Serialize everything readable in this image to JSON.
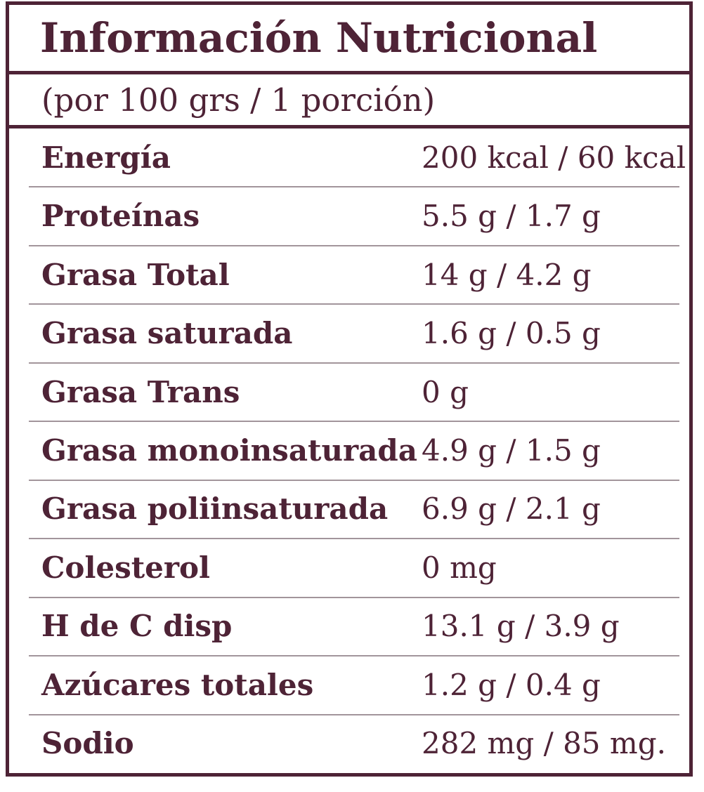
{
  "label": {
    "title": "Información Nutricional",
    "serving_info": "(por 100 grs / 1 porción)",
    "rows": [
      {
        "name": "Energía",
        "value": "200 kcal / 60 kcal"
      },
      {
        "name": "Proteínas",
        "value": "5.5 g / 1.7 g"
      },
      {
        "name": "Grasa Total",
        "value": "14 g / 4.2 g"
      },
      {
        "name": "Grasa saturada",
        "value": "1.6 g / 0.5 g"
      },
      {
        "name": "Grasa Trans",
        "value": "0 g"
      },
      {
        "name": "Grasa monoinsaturada",
        "value": "4.9 g / 1.5 g"
      },
      {
        "name": "Grasa poliinsaturada",
        "value": "6.9 g / 2.1 g"
      },
      {
        "name": "Colesterol",
        "value": "0 mg"
      },
      {
        "name": "H de C disp",
        "value": "13.1 g / 3.9 g"
      },
      {
        "name": "Azúcares totales",
        "value": "1.2 g / 0.4 g"
      },
      {
        "name": "Sodio",
        "value": "282 mg / 85 mg."
      }
    ],
    "colors": {
      "text": "#4e2336",
      "border": "#4e2336",
      "section_rule": "#4e2336",
      "row_divider": "#a2959b",
      "background": "#ffffff"
    }
  }
}
